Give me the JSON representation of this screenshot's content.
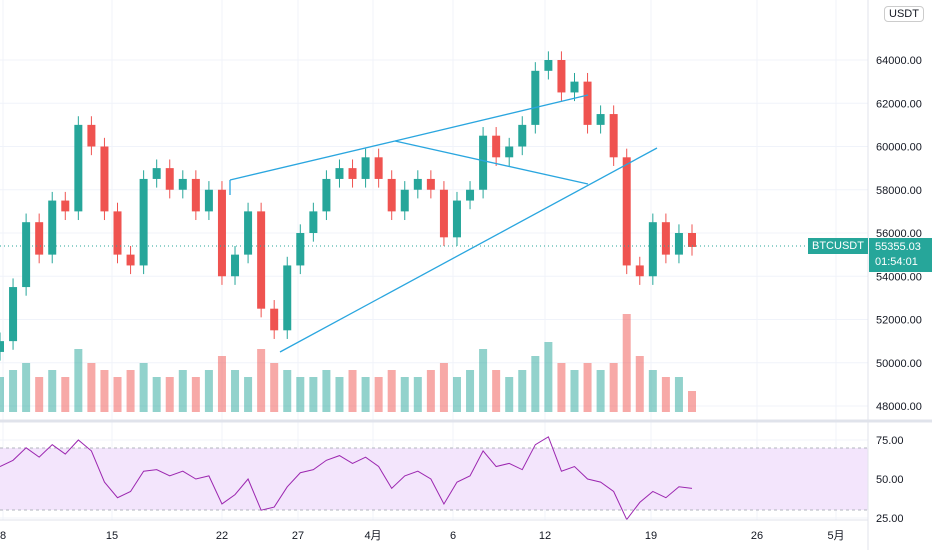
{
  "symbol": "BTCUSDT",
  "currency_label": "USDT",
  "last_price": "55355.03",
  "countdown": "01:54:01",
  "colors": {
    "up": "#26a69a",
    "down": "#ef5350",
    "rsi": "#9c27b0",
    "rsi_band": "#f3e5fc",
    "drawing": "#2aa6df",
    "price_tag": "#26a69a"
  },
  "chart_data": {
    "type": "candlestick",
    "price_axis": {
      "ticks": [
        "64000.00",
        "62000.00",
        "60000.00",
        "58000.00",
        "56000.00",
        "54000.00",
        "52000.00",
        "50000.00",
        "48000.00"
      ],
      "range": [
        48000,
        65500
      ]
    },
    "rsi_axis": {
      "ticks": [
        "75.00",
        "50.00",
        "25.00"
      ],
      "band": [
        30,
        70
      ]
    },
    "x_ticks": [
      "8",
      "15",
      "22",
      "27",
      "4月",
      "6",
      "12",
      "19",
      "26",
      "5月"
    ],
    "closes": [
      51000,
      53500,
      56500,
      55000,
      57500,
      57000,
      61000,
      60000,
      57000,
      55000,
      54500,
      58500,
      59000,
      58000,
      58500,
      57000,
      58000,
      54000,
      55000,
      57000,
      52500,
      51500,
      54500,
      56000,
      57000,
      58500,
      59000,
      58500,
      59500,
      58500,
      57000,
      58000,
      58500,
      58000,
      55800,
      57500,
      58000,
      60500,
      59500,
      60000,
      61000,
      63500,
      64000,
      62500,
      63000,
      61000,
      61500,
      59500,
      54500,
      54000,
      56500,
      55000,
      56000,
      55355
    ],
    "volumes": [
      5,
      6,
      7,
      5,
      6,
      5,
      9,
      7,
      6,
      5,
      6,
      7,
      5,
      5,
      6,
      5,
      6,
      8,
      6,
      5,
      9,
      7,
      6,
      5,
      5,
      6,
      5,
      6,
      5,
      5,
      6,
      5,
      5,
      6,
      7,
      5,
      6,
      9,
      6,
      5,
      6,
      8,
      10,
      7,
      6,
      7,
      6,
      7,
      14,
      8,
      6,
      5,
      5,
      3
    ],
    "rsi": [
      58,
      62,
      70,
      64,
      72,
      66,
      75,
      68,
      48,
      38,
      42,
      55,
      56,
      52,
      55,
      50,
      52,
      34,
      40,
      50,
      30,
      32,
      45,
      54,
      56,
      62,
      65,
      60,
      64,
      58,
      44,
      52,
      55,
      50,
      34,
      48,
      52,
      68,
      58,
      60,
      56,
      72,
      77,
      55,
      58,
      50,
      48,
      42,
      24,
      35,
      42,
      38,
      45,
      44
    ]
  }
}
